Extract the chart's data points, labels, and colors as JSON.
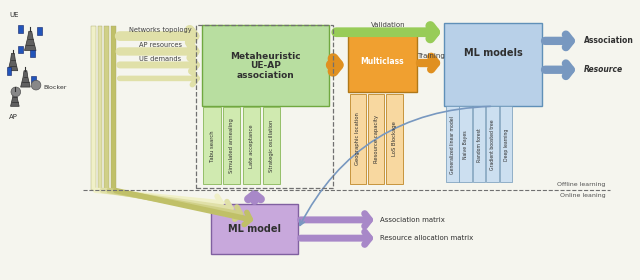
{
  "fig_width": 6.4,
  "fig_height": 2.8,
  "dpi": 100,
  "bg_color": "#f5f5ee",
  "colors": {
    "green_box": "#b8dea0",
    "green_border": "#70a840",
    "green_col": "#d0eab0",
    "green_col_border": "#88b858",
    "orange_box": "#f0a030",
    "orange_col": "#f8d8a0",
    "orange_col_border": "#c08828",
    "blue_box": "#b8d0e8",
    "blue_col": "#ccdff0",
    "blue_col_border": "#7098b8",
    "blue_border": "#6090b8",
    "purple_box": "#c8a8dc",
    "purple_border": "#8060a0",
    "dashed_border": "#707070",
    "text_dark": "#303030",
    "cream_light": "#f0f0c8",
    "cream_mid": "#e0e0a8",
    "cream_dark": "#d0d088",
    "cream_darker": "#c0c068",
    "green_arrow": "#98cc58",
    "blue_arrow": "#7898c0",
    "orange_arrow": "#e09020",
    "purple_arrow": "#a888c8"
  },
  "meta_sub_cols": [
    "Tabu search",
    "Simulated annealing",
    "Late acceptance",
    "Strategic oscillation"
  ],
  "multi_sub_cols": [
    "Geographic location",
    "Resource capacity",
    "LoS Blockage"
  ],
  "ml_sub_cols": [
    "Generalized linear model",
    "Naive Bayes",
    "Random forest",
    "Gradient boosted tree",
    "Deep learning"
  ],
  "input_labels": [
    "Networks topology",
    "AP resources",
    "UE demands"
  ],
  "validation_label": "Validation",
  "training_label": "Training",
  "assoc_label": "Association",
  "resource_label": "Resource",
  "offline_label": "Offline learning",
  "online_label": "Online leaning",
  "assoc_matrix_label": "Association matrix",
  "res_matrix_label": "Resource allocation matrix"
}
